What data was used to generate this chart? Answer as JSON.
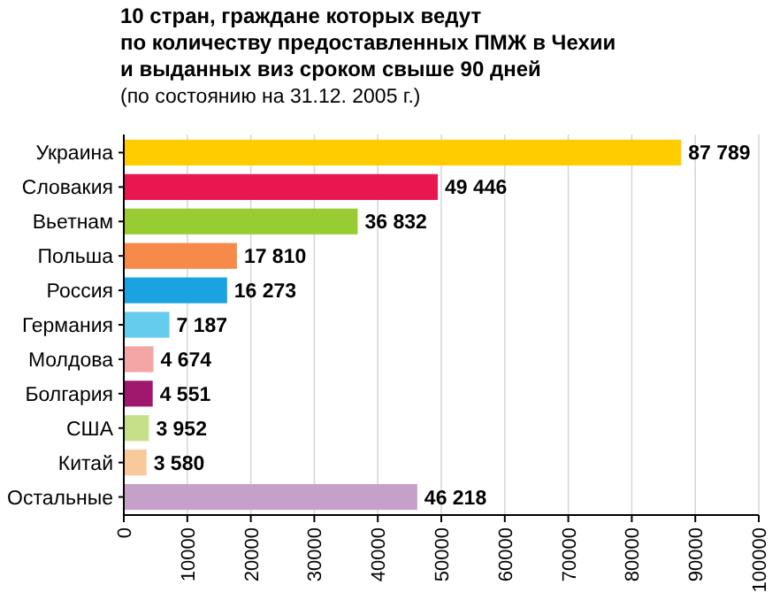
{
  "chart_data": {
    "type": "bar",
    "orientation": "horizontal",
    "title": "10 стран, граждане которых ведут\nпо количеству предоставленных ПМЖ в Чехии\nи выданных виз сроком свыше 90 дней",
    "subtitle": "(по состоянию на 31.12. 2005 г.)",
    "categories": [
      "Украина",
      "Словакия",
      "Вьетнам",
      "Польша",
      "Россия",
      "Германия",
      "Молдова",
      "Болгария",
      "США",
      "Китай",
      "Остальные"
    ],
    "values": [
      87789,
      49446,
      36832,
      17810,
      16273,
      7187,
      4674,
      4551,
      3952,
      3580,
      46218
    ],
    "value_labels": [
      "87 789",
      "49 446",
      "36 832",
      "17 810",
      "16 273",
      "7 187",
      "4 674",
      "4 551",
      "3 952",
      "3 580",
      "46 218"
    ],
    "colors": [
      "#ffcc00",
      "#e8174f",
      "#99cc33",
      "#f58a4b",
      "#1aa3e0",
      "#66ccee",
      "#f4a6a6",
      "#a0176e",
      "#c6e08a",
      "#f9c89b",
      "#c5a0c8"
    ],
    "xlim": [
      0,
      100000
    ],
    "xticks": [
      0,
      10000,
      20000,
      30000,
      40000,
      50000,
      60000,
      70000,
      80000,
      90000,
      100000
    ],
    "grid": "x"
  }
}
